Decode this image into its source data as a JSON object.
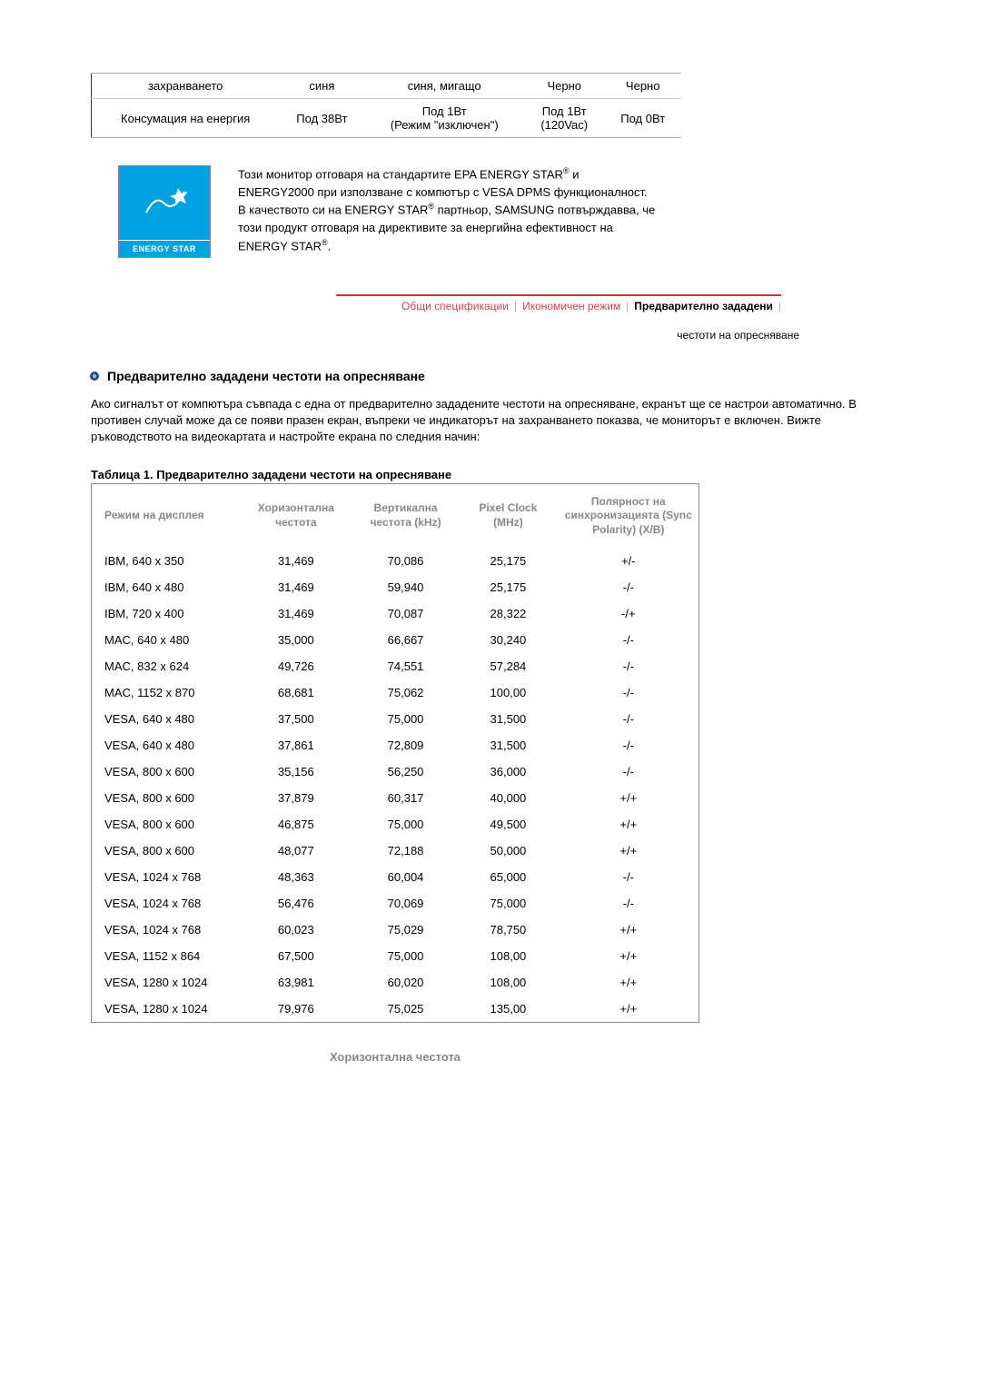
{
  "top_table": {
    "row1": [
      "захранването",
      "синя",
      "синя, мигащо",
      "Черно",
      "Черно"
    ],
    "row2_label": "Консумация на енергия",
    "row2": [
      "Под 38Вт",
      "Под 1Вт\n(Режим \"изключен\")",
      "Под 1Вт\n(120Vac)",
      "Под 0Вт"
    ]
  },
  "energy_logo_label": "ENERGY STAR",
  "energy_text_1a": "Този монитор отговаря на стандартите EPA ENERGY STAR",
  "energy_text_1b": " и ENERGY2000 при използване с компютър с VESA DPMS функционалност.",
  "energy_text_2a": "В качеството си на ENERGY STAR",
  "energy_text_2b": " партньор, SAMSUNG потвърждавва, че този продукт отговаря на директивите за енергийна ефективност на ENERGY STAR",
  "energy_text_2c": ".",
  "tabs": {
    "t1": "Общи спецификации",
    "t2": "Икономичен режим",
    "t3": "Предварително зададени",
    "t3_sub": "честоти на опресняване"
  },
  "section_title": "Предварително зададени честоти на опресняване",
  "intro": "Ако сигналът от компютъра съвпада с една от предварително зададените честоти на опресняване, екранът ще се настрои автоматично. В противен случай може да се появи празен екран, въпреки че индикаторът на захранването показва, че мониторът е включен. Вижте ръководството на видеокартата и настройте екрана по следния начин:",
  "table_caption": "Таблица 1. Предварително зададени честоти на опресняване",
  "timing": {
    "headers": [
      "Режим на дисплея",
      "Хоризонтална честота",
      "Вертикална честота (kHz)",
      "Pixel Clock (MHz)",
      "Полярност на синхронизацията (Sync Polarity) (X/B)"
    ],
    "rows": [
      [
        "IBM, 640 x 350",
        "31,469",
        "70,086",
        "25,175",
        "+/-"
      ],
      [
        "IBM, 640 x 480",
        "31,469",
        "59,940",
        "25,175",
        "-/-"
      ],
      [
        "IBM, 720 x 400",
        "31,469",
        "70,087",
        "28,322",
        "-/+"
      ],
      [
        "MAC, 640 x 480",
        "35,000",
        "66,667",
        "30,240",
        "-/-"
      ],
      [
        "MAC, 832 x 624",
        "49,726",
        "74,551",
        "57,284",
        "-/-"
      ],
      [
        "MAC, 1152 x 870",
        "68,681",
        "75,062",
        "100,00",
        "-/-"
      ],
      [
        "VESA, 640 x 480",
        "37,500",
        "75,000",
        "31,500",
        "-/-"
      ],
      [
        "VESA, 640 x 480",
        "37,861",
        "72,809",
        "31,500",
        "-/-"
      ],
      [
        "VESA, 800 x 600",
        "35,156",
        "56,250",
        "36,000",
        "-/-"
      ],
      [
        "VESA, 800 x 600",
        "37,879",
        "60,317",
        "40,000",
        "+/+"
      ],
      [
        "VESA, 800 x 600",
        "46,875",
        "75,000",
        "49,500",
        "+/+"
      ],
      [
        "VESA, 800 x 600",
        "48,077",
        "72,188",
        "50,000",
        "+/+"
      ],
      [
        "VESA, 1024 x 768",
        "48,363",
        "60,004",
        "65,000",
        "-/-"
      ],
      [
        "VESA, 1024 x 768",
        "56,476",
        "70,069",
        "75,000",
        "-/-"
      ],
      [
        "VESA, 1024 x 768",
        "60,023",
        "75,029",
        "78,750",
        "+/+"
      ],
      [
        "VESA, 1152 x 864",
        "67,500",
        "75,000",
        "108,00",
        "+/+"
      ],
      [
        "VESA, 1280 x 1024",
        "63,981",
        "60,020",
        "108,00",
        "+/+"
      ],
      [
        "VESA, 1280 x 1024",
        "79,976",
        "75,025",
        "135,00",
        "+/+"
      ]
    ]
  },
  "footer_label": "Хоризонтална честота"
}
